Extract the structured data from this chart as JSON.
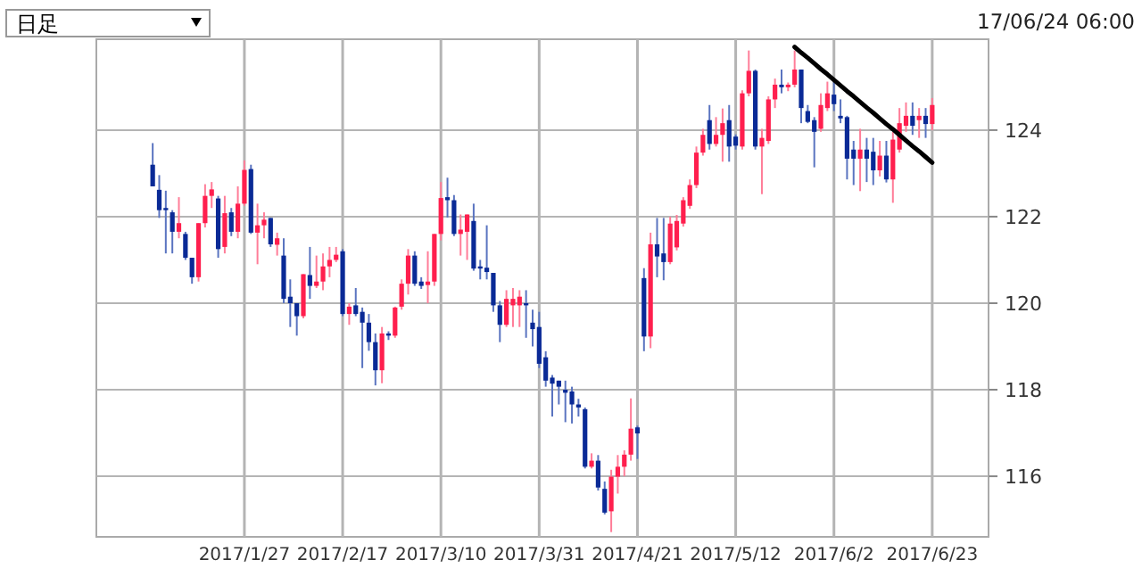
{
  "chart_data": {
    "type": "candlestick",
    "title": "日足",
    "subtitle": "17/06/24 06:00",
    "categories": [
      null,
      null,
      null,
      null,
      null,
      null,
      null,
      null,
      null,
      null,
      null,
      null,
      null,
      null,
      "2017/1/27",
      null,
      null,
      null,
      null,
      null,
      null,
      null,
      null,
      null,
      null,
      null,
      null,
      null,
      null,
      "2017/2/17",
      null,
      null,
      null,
      null,
      null,
      null,
      null,
      null,
      null,
      null,
      null,
      null,
      null,
      null,
      "2017/3/10",
      null,
      null,
      null,
      null,
      null,
      null,
      null,
      null,
      null,
      null,
      null,
      null,
      null,
      null,
      "2017/3/31",
      null,
      null,
      null,
      null,
      null,
      null,
      null,
      null,
      null,
      null,
      null,
      null,
      null,
      null,
      "2017/4/21",
      null,
      null,
      null,
      null,
      null,
      null,
      null,
      null,
      null,
      null,
      null,
      null,
      null,
      null,
      "2017/5/12",
      null,
      null,
      null,
      null,
      null,
      null,
      null,
      null,
      null,
      null,
      null,
      null,
      null,
      null,
      "2017/6/2",
      null,
      null,
      null,
      null,
      null,
      null,
      null,
      null,
      null,
      null,
      null,
      null,
      null,
      null,
      "2017/6/23"
    ],
    "ohlc": [
      [
        123.2,
        123.7,
        122.7,
        122.7
      ],
      [
        122.62,
        122.96,
        121.97,
        122.15
      ],
      [
        122.2,
        122.6,
        121.15,
        122.15
      ],
      [
        122.1,
        122.15,
        121.15,
        121.65
      ],
      [
        121.65,
        122.45,
        121.5,
        121.85
      ],
      [
        121.6,
        121.65,
        121.0,
        121.05
      ],
      [
        121.05,
        121.05,
        120.45,
        120.6
      ],
      [
        120.6,
        121.85,
        120.5,
        121.85
      ],
      [
        121.85,
        122.75,
        121.75,
        122.48
      ],
      [
        122.48,
        122.8,
        122.2,
        122.63
      ],
      [
        122.42,
        122.48,
        121.05,
        121.25
      ],
      [
        121.3,
        122.48,
        121.15,
        122.08
      ],
      [
        122.1,
        122.2,
        121.55,
        121.65
      ],
      [
        121.65,
        122.7,
        121.5,
        122.3
      ],
      [
        122.3,
        123.3,
        122.25,
        123.08
      ],
      [
        123.1,
        123.2,
        121.6,
        121.63
      ],
      [
        121.63,
        122.3,
        120.9,
        121.8
      ],
      [
        121.8,
        122.1,
        121.5,
        121.93
      ],
      [
        121.97,
        121.97,
        121.3,
        121.36
      ],
      [
        121.35,
        121.63,
        121.1,
        121.5
      ],
      [
        121.1,
        121.5,
        120.0,
        120.1
      ],
      [
        120.15,
        120.55,
        119.45,
        120.0
      ],
      [
        120.0,
        120.0,
        119.25,
        119.7
      ],
      [
        119.7,
        120.67,
        119.65,
        120.67
      ],
      [
        120.65,
        121.3,
        120.1,
        120.4
      ],
      [
        120.4,
        121.1,
        120.35,
        120.5
      ],
      [
        120.5,
        121.15,
        120.3,
        120.85
      ],
      [
        120.85,
        121.3,
        120.6,
        121.0
      ],
      [
        121.0,
        121.3,
        120.95,
        121.12
      ],
      [
        121.2,
        121.25,
        119.7,
        119.75
      ],
      [
        119.75,
        120.0,
        119.5,
        119.92
      ],
      [
        119.95,
        120.35,
        119.7,
        119.75
      ],
      [
        119.8,
        119.9,
        118.5,
        119.55
      ],
      [
        119.55,
        119.75,
        118.9,
        119.1
      ],
      [
        119.1,
        119.3,
        118.1,
        118.45
      ],
      [
        118.45,
        119.45,
        118.15,
        119.3
      ],
      [
        119.3,
        119.35,
        119.15,
        119.25
      ],
      [
        119.25,
        119.92,
        119.2,
        119.9
      ],
      [
        119.92,
        120.55,
        119.85,
        120.45
      ],
      [
        120.45,
        121.25,
        120.2,
        121.1
      ],
      [
        121.1,
        121.2,
        120.4,
        120.45
      ],
      [
        120.5,
        120.6,
        120.33,
        120.4
      ],
      [
        120.42,
        121.2,
        120.0,
        120.5
      ],
      [
        120.5,
        121.6,
        120.4,
        121.6
      ],
      [
        121.6,
        122.8,
        121.45,
        122.43
      ],
      [
        122.45,
        122.9,
        121.98,
        122.38
      ],
      [
        122.38,
        122.5,
        121.55,
        121.6
      ],
      [
        121.6,
        122.05,
        121.1,
        121.7
      ],
      [
        121.65,
        122.05,
        121.0,
        122.05
      ],
      [
        121.9,
        122.3,
        120.75,
        120.8
      ],
      [
        120.85,
        121.0,
        120.55,
        120.8
      ],
      [
        120.82,
        121.8,
        120.55,
        120.72
      ],
      [
        120.7,
        120.7,
        119.8,
        119.95
      ],
      [
        119.95,
        120.05,
        119.1,
        119.5
      ],
      [
        119.5,
        120.3,
        119.45,
        120.1
      ],
      [
        119.95,
        120.35,
        119.45,
        120.1
      ],
      [
        119.95,
        120.3,
        119.45,
        120.15
      ],
      [
        120.0,
        120.3,
        119.2,
        119.95
      ],
      [
        119.55,
        119.85,
        119.0,
        119.4
      ],
      [
        119.45,
        119.8,
        118.5,
        118.6
      ],
      [
        118.75,
        118.89,
        118.07,
        118.21
      ],
      [
        118.28,
        118.34,
        117.38,
        118.14
      ],
      [
        118.21,
        118.21,
        117.66,
        118.07
      ],
      [
        118.0,
        118.21,
        117.25,
        117.93
      ],
      [
        117.96,
        118.07,
        117.22,
        117.66
      ],
      [
        117.66,
        117.79,
        117.38,
        117.59
      ],
      [
        117.55,
        117.59,
        116.18,
        116.22
      ],
      [
        116.22,
        116.53,
        116.18,
        116.36
      ],
      [
        116.36,
        116.49,
        115.67,
        115.74
      ],
      [
        115.71,
        115.88,
        115.12,
        115.16
      ],
      [
        115.19,
        116.15,
        114.71,
        115.99
      ],
      [
        115.99,
        116.49,
        115.6,
        116.22
      ],
      [
        116.22,
        116.6,
        116.0,
        116.5
      ],
      [
        116.5,
        117.8,
        116.36,
        117.1
      ],
      [
        117.13,
        117.17,
        116.4,
        116.99
      ],
      [
        120.58,
        120.81,
        118.89,
        119.23
      ],
      [
        119.23,
        121.63,
        118.96,
        121.36
      ],
      [
        121.36,
        121.97,
        120.6,
        121.08
      ],
      [
        121.15,
        121.97,
        120.53,
        120.95
      ],
      [
        120.95,
        122.0,
        120.9,
        121.84
      ],
      [
        121.29,
        122.04,
        121.22,
        121.9
      ],
      [
        121.84,
        122.45,
        121.77,
        122.38
      ],
      [
        122.25,
        122.86,
        122.18,
        122.73
      ],
      [
        122.73,
        123.62,
        122.66,
        123.48
      ],
      [
        123.48,
        124.03,
        123.41,
        123.89
      ],
      [
        124.23,
        124.58,
        123.55,
        123.68
      ],
      [
        123.68,
        124.3,
        123.62,
        123.89
      ],
      [
        123.89,
        124.5,
        123.27,
        124.16
      ],
      [
        124.23,
        124.58,
        123.27,
        123.62
      ],
      [
        123.85,
        123.9,
        123.55,
        123.64
      ],
      [
        123.62,
        124.92,
        123.55,
        124.85
      ],
      [
        124.85,
        125.84,
        124.78,
        125.37
      ],
      [
        125.37,
        125.4,
        123.55,
        123.62
      ],
      [
        123.62,
        124.03,
        122.52,
        123.82
      ],
      [
        123.75,
        124.78,
        123.68,
        124.71
      ],
      [
        124.71,
        125.19,
        124.51,
        125.05
      ],
      [
        125.05,
        125.4,
        124.85,
        124.99
      ],
      [
        124.99,
        125.1,
        124.9,
        125.05
      ],
      [
        125.05,
        125.84,
        124.99,
        125.4
      ],
      [
        125.4,
        125.4,
        124.16,
        124.51
      ],
      [
        124.44,
        124.58,
        124.16,
        124.19
      ],
      [
        124.23,
        124.3,
        123.14,
        123.96
      ],
      [
        124.03,
        124.85,
        123.96,
        124.58
      ],
      [
        124.51,
        125.12,
        124.44,
        124.85
      ],
      [
        124.82,
        125.12,
        124.44,
        124.6
      ],
      [
        124.33,
        124.71,
        124.16,
        124.27
      ],
      [
        124.3,
        124.33,
        122.86,
        123.34
      ],
      [
        123.55,
        123.75,
        122.73,
        123.34
      ],
      [
        123.34,
        124.03,
        122.59,
        123.55
      ],
      [
        123.55,
        123.82,
        122.8,
        123.34
      ],
      [
        123.5,
        123.82,
        122.73,
        123.07
      ],
      [
        123.07,
        123.75,
        122.93,
        123.41
      ],
      [
        123.41,
        123.75,
        122.79,
        122.86
      ],
      [
        122.86,
        123.96,
        122.32,
        123.78
      ],
      [
        123.55,
        124.51,
        123.48,
        124.16
      ],
      [
        124.1,
        124.64,
        123.96,
        124.33
      ],
      [
        124.33,
        124.64,
        123.89,
        124.1
      ],
      [
        124.23,
        124.51,
        123.82,
        124.33
      ],
      [
        124.33,
        124.51,
        123.82,
        124.14
      ],
      [
        124.14,
        124.74,
        124.0,
        124.58
      ]
    ],
    "series": [
      {
        "type": "line",
        "values": [
          null,
          null,
          null,
          null,
          null,
          null,
          null,
          null,
          null,
          null,
          null,
          null,
          null,
          null,
          null,
          null,
          null,
          null,
          null,
          null,
          null,
          null,
          null,
          null,
          null,
          null,
          null,
          null,
          null,
          null,
          null,
          null,
          null,
          null,
          null,
          null,
          null,
          null,
          null,
          null,
          null,
          null,
          null,
          null,
          null,
          null,
          null,
          null,
          null,
          null,
          null,
          null,
          null,
          null,
          null,
          null,
          null,
          null,
          null,
          null,
          null,
          null,
          null,
          null,
          null,
          null,
          null,
          null,
          null,
          null,
          null,
          null,
          null,
          null,
          null,
          null,
          null,
          null,
          null,
          null,
          null,
          null,
          null,
          null,
          null,
          null,
          null,
          null,
          null,
          null,
          null,
          null,
          null,
          null,
          null,
          null,
          null,
          null,
          125.92,
          125.79,
          125.67,
          125.54,
          125.41,
          125.29,
          125.16,
          125.03,
          124.9,
          124.78,
          124.65,
          124.52,
          124.4,
          124.27,
          124.14,
          124.02,
          123.89,
          123.76,
          123.63,
          123.51,
          123.38,
          123.25
        ],
        "color": "#000000"
      }
    ],
    "ylim": [
      114.6,
      126.1
    ],
    "yticks": [
      116,
      118,
      120,
      122,
      124
    ],
    "grid": true
  }
}
